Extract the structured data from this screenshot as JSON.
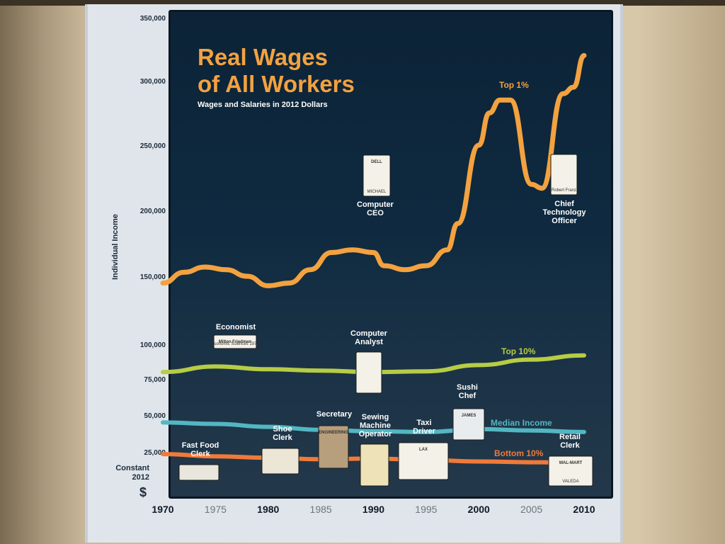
{
  "chart_data": {
    "type": "line",
    "title": "Real Wages of All Workers",
    "title_line1": "Real Wages",
    "title_line2": "of All Workers",
    "subtitle": "Wages and Salaries in 2012 Dollars",
    "ylabel": "Individual Income",
    "ylabel_bottom": [
      "Constant",
      "2012"
    ],
    "currency_symbol": "$",
    "ylim": [
      0,
      350000
    ],
    "y_ticks": [
      {
        "value": 25000,
        "label": "25,000"
      },
      {
        "value": 50000,
        "label": "50,000"
      },
      {
        "value": 75000,
        "label": "75,000"
      },
      {
        "value": 100000,
        "label": "100,000"
      },
      {
        "value": 150000,
        "label": "150,000"
      },
      {
        "value": 200000,
        "label": "200,000"
      },
      {
        "value": 250000,
        "label": "250,000"
      },
      {
        "value": 300000,
        "label": "300,000"
      },
      {
        "value": 350000,
        "label": "350,000"
      }
    ],
    "x_ticks": [
      {
        "value": 1970,
        "label": "1970",
        "major": true
      },
      {
        "value": 1975,
        "label": "1975",
        "major": false
      },
      {
        "value": 1980,
        "label": "1980",
        "major": true
      },
      {
        "value": 1985,
        "label": "1985",
        "major": false
      },
      {
        "value": 1990,
        "label": "1990",
        "major": true
      },
      {
        "value": 1995,
        "label": "1995",
        "major": false
      },
      {
        "value": 2000,
        "label": "2000",
        "major": true
      },
      {
        "value": 2005,
        "label": "2005",
        "major": false
      },
      {
        "value": 2010,
        "label": "2010",
        "major": true
      }
    ],
    "series": [
      {
        "name": "Top 1%",
        "color": "#f3a23f",
        "x": [
          1970,
          1972,
          1974,
          1976,
          1978,
          1980,
          1982,
          1984,
          1986,
          1988,
          1990,
          1991,
          1993,
          1995,
          1997,
          1998,
          2000,
          2001,
          2002,
          2003,
          2005,
          2006,
          2008,
          2009,
          2010
        ],
        "values": [
          145000,
          153000,
          157000,
          155000,
          150000,
          143000,
          145000,
          155000,
          168000,
          170000,
          168000,
          158000,
          155000,
          158000,
          170000,
          190000,
          250000,
          275000,
          285000,
          285000,
          220000,
          217000,
          290000,
          295000,
          320000
        ]
      },
      {
        "name": "Top 10%",
        "color": "#b6cc45",
        "x": [
          1970,
          1975,
          1980,
          1985,
          1990,
          1995,
          2000,
          2005,
          2010
        ],
        "values": [
          80000,
          84000,
          82000,
          81000,
          80000,
          80500,
          85000,
          89000,
          92000
        ]
      },
      {
        "name": "Median Income",
        "color": "#52b7c2",
        "x": [
          1970,
          1975,
          1980,
          1985,
          1990,
          1995,
          2000,
          2005,
          2010
        ],
        "values": [
          45000,
          44000,
          42000,
          40000,
          39000,
          38500,
          40500,
          39500,
          38500
        ]
      },
      {
        "name": "Bottom 10%",
        "color": "#f07a3a",
        "x": [
          1970,
          1975,
          1980,
          1985,
          1990,
          1995,
          2000,
          2005,
          2010
        ],
        "values": [
          23500,
          22000,
          21000,
          20000,
          20500,
          19500,
          18500,
          18000,
          17500
        ]
      }
    ],
    "occupations": [
      {
        "name": "computer-ceo",
        "lines": [
          "Computer",
          "CEO"
        ],
        "badge_text": "DELL",
        "badge_name": "MICHAEL",
        "year": 1990,
        "value": 195000
      },
      {
        "name": "chief-technology-officer",
        "lines": [
          "Chief",
          "Technology",
          "Officer"
        ],
        "badge_text": "",
        "badge_name": "Robert Franz",
        "year": 2009,
        "value": 195000
      },
      {
        "name": "economist",
        "lines": [
          "Economist"
        ],
        "badge_text": "Milton Friedman",
        "badge_name": "Economic Sciences 1976",
        "year": 1973,
        "value": 104000
      },
      {
        "name": "computer-analyst",
        "lines": [
          "Computer",
          "Analyst"
        ],
        "badge_text": "",
        "badge_name": "",
        "year": 1990,
        "value": 106000
      },
      {
        "name": "sushi-chef",
        "lines": [
          "Sushi",
          "Chef"
        ],
        "badge_text": "JAMES",
        "badge_name": "",
        "year": 2000,
        "value": 54000
      },
      {
        "name": "shoe-clerk",
        "lines": [
          "Shoe",
          "Clerk"
        ],
        "badge_text": "",
        "badge_name": "",
        "year": 1981,
        "value": 42000
      },
      {
        "name": "secretary",
        "lines": [
          "Secretary"
        ],
        "badge_text": "ENGINEERING",
        "badge_name": "",
        "year": 1985,
        "value": 52000
      },
      {
        "name": "sewing-machine-operator",
        "lines": [
          "Sewing",
          "Machine",
          "Operator"
        ],
        "badge_text": "",
        "badge_name": "",
        "year": 1990,
        "value": 48000
      },
      {
        "name": "taxi-driver",
        "lines": [
          "Taxi",
          "Driver"
        ],
        "badge_text": "LAX",
        "badge_name": "",
        "year": 1995,
        "value": 48000
      },
      {
        "name": "fast-food-clerk",
        "lines": [
          "Fast Food",
          "Clerk"
        ],
        "badge_text": "",
        "badge_name": "",
        "year": 1973,
        "value": 26000
      },
      {
        "name": "retail-clerk",
        "lines": [
          "Retail",
          "Clerk"
        ],
        "badge_text": "WAL-MART",
        "badge_name": "VALEDA",
        "year": 2009,
        "value": 31000
      }
    ]
  }
}
